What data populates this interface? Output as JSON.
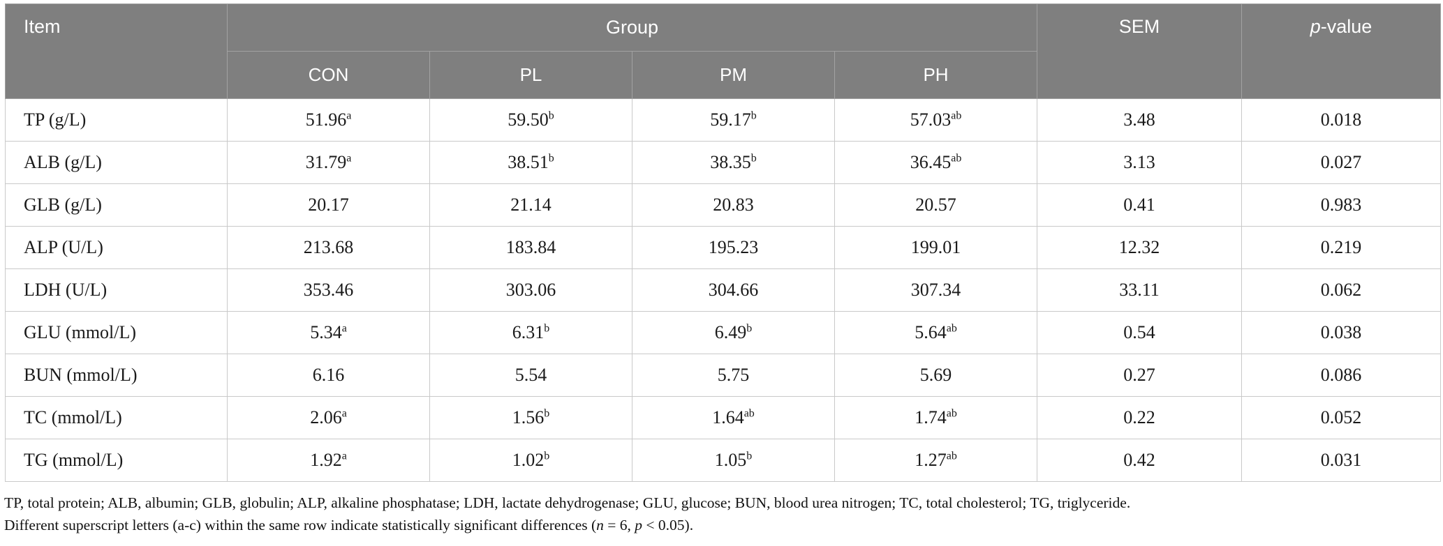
{
  "colors": {
    "header_bg": "#7f7f7f",
    "header_text": "#ffffff",
    "header_divider": "#a2a2a2",
    "body_border": "#c9c9c9",
    "body_text": "#1a1a1a"
  },
  "table": {
    "headers": {
      "item": "Item",
      "group": "Group",
      "sem": "SEM",
      "pvalue_italic": "p",
      "pvalue_rest": "-value"
    },
    "group_columns": [
      "CON",
      "PL",
      "PM",
      "PH"
    ],
    "rows": [
      {
        "item": "TP (g/L)",
        "values": [
          {
            "v": "51.96",
            "sup": "a"
          },
          {
            "v": "59.50",
            "sup": "b"
          },
          {
            "v": "59.17",
            "sup": "b"
          },
          {
            "v": "57.03",
            "sup": "ab"
          }
        ],
        "sem": "3.48",
        "p": "0.018"
      },
      {
        "item": "ALB (g/L)",
        "values": [
          {
            "v": "31.79",
            "sup": "a"
          },
          {
            "v": "38.51",
            "sup": "b"
          },
          {
            "v": "38.35",
            "sup": "b"
          },
          {
            "v": "36.45",
            "sup": "ab"
          }
        ],
        "sem": "3.13",
        "p": "0.027"
      },
      {
        "item": "GLB (g/L)",
        "values": [
          {
            "v": "20.17"
          },
          {
            "v": "21.14"
          },
          {
            "v": "20.83"
          },
          {
            "v": "20.57"
          }
        ],
        "sem": "0.41",
        "p": "0.983"
      },
      {
        "item": "ALP (U/L)",
        "values": [
          {
            "v": "213.68"
          },
          {
            "v": "183.84"
          },
          {
            "v": "195.23"
          },
          {
            "v": "199.01"
          }
        ],
        "sem": "12.32",
        "p": "0.219"
      },
      {
        "item": "LDH (U/L)",
        "values": [
          {
            "v": "353.46"
          },
          {
            "v": "303.06"
          },
          {
            "v": "304.66"
          },
          {
            "v": "307.34"
          }
        ],
        "sem": "33.11",
        "p": "0.062"
      },
      {
        "item": "GLU (mmol/L)",
        "values": [
          {
            "v": "5.34",
            "sup": "a"
          },
          {
            "v": "6.31",
            "sup": "b"
          },
          {
            "v": "6.49",
            "sup": "b"
          },
          {
            "v": "5.64",
            "sup": "ab"
          }
        ],
        "sem": "0.54",
        "p": "0.038"
      },
      {
        "item": "BUN (mmol/L)",
        "values": [
          {
            "v": "6.16"
          },
          {
            "v": "5.54"
          },
          {
            "v": "5.75"
          },
          {
            "v": "5.69"
          }
        ],
        "sem": "0.27",
        "p": "0.086"
      },
      {
        "item": "TC (mmol/L)",
        "values": [
          {
            "v": "2.06",
            "sup": "a"
          },
          {
            "v": "1.56",
            "sup": "b"
          },
          {
            "v": "1.64",
            "sup": "ab"
          },
          {
            "v": "1.74",
            "sup": "ab"
          }
        ],
        "sem": "0.22",
        "p": "0.052"
      },
      {
        "item": "TG (mmol/L)",
        "values": [
          {
            "v": "1.92",
            "sup": "a"
          },
          {
            "v": "1.02",
            "sup": "b"
          },
          {
            "v": "1.05",
            "sup": "b"
          },
          {
            "v": "1.27",
            "sup": "ab"
          }
        ],
        "sem": "0.42",
        "p": "0.031"
      }
    ]
  },
  "footnotes": {
    "line1": "TP, total protein; ALB, albumin; GLB, globulin; ALP, alkaline phosphatase; LDH, lactate dehydrogenase; GLU, glucose; BUN, blood urea nitrogen; TC, total cholesterol; TG, triglyceride.",
    "line2": {
      "pre": "Different superscript letters (a-c) within the same row indicate statistically significant differences (",
      "n": "n",
      "mid": " = 6, ",
      "p": "p",
      "post": " < 0.05)."
    }
  }
}
